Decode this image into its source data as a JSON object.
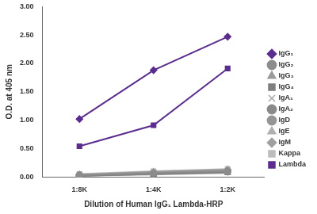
{
  "chart_data": {
    "type": "line",
    "x_label": "Dilution of Human IgG₁ Lambda-HRP",
    "y_label": "O.D. at 405 nm",
    "categories": [
      "1:8K",
      "1:4K",
      "1:2K"
    ],
    "series": [
      {
        "name": "IgG₁",
        "color": "#5b2d8e",
        "marker": "diamond",
        "values": [
          1.02,
          1.88,
          2.47
        ]
      },
      {
        "name": "IgG₂",
        "color": "#8c8c8c",
        "marker": "circle",
        "values": [
          0.03,
          0.07,
          0.1
        ]
      },
      {
        "name": "IgG₃",
        "color": "#9a9a9a",
        "marker": "triangle",
        "values": [
          0.04,
          0.09,
          0.13
        ]
      },
      {
        "name": "IgG₄",
        "color": "#7f7f7f",
        "marker": "square",
        "values": [
          0.02,
          0.05,
          0.08
        ]
      },
      {
        "name": "IgA₁",
        "color": "#a6a6a6",
        "marker": "cross",
        "values": [
          0.03,
          0.06,
          0.1
        ]
      },
      {
        "name": "IgA₂",
        "color": "#8a8a8a",
        "marker": "circle",
        "values": [
          0.02,
          0.05,
          0.09
        ]
      },
      {
        "name": "IgD",
        "color": "#959595",
        "marker": "circle",
        "values": [
          0.03,
          0.06,
          0.11
        ]
      },
      {
        "name": "IgE",
        "color": "#b0b0b0",
        "marker": "triangle",
        "values": [
          0.02,
          0.04,
          0.07
        ]
      },
      {
        "name": "IgM",
        "color": "#a0a0a0",
        "marker": "diamond",
        "values": [
          0.03,
          0.07,
          0.12
        ]
      },
      {
        "name": "Kappa",
        "color": "#bdbdbd",
        "marker": "square",
        "values": [
          0.05,
          0.1,
          0.14
        ]
      },
      {
        "name": "Lambda",
        "color": "#5b2d8e",
        "marker": "square",
        "values": [
          0.54,
          0.91,
          1.91
        ]
      }
    ],
    "ylim": [
      0,
      3
    ],
    "yticks": [
      {
        "value": 0,
        "label": "0.00"
      },
      {
        "value": 0.5,
        "label": "0.50"
      },
      {
        "value": 1,
        "label": "1.00"
      },
      {
        "value": 1.5,
        "label": "1.50"
      },
      {
        "value": 2,
        "label": "2.00"
      },
      {
        "value": 2.5,
        "label": "2.50"
      },
      {
        "value": 3,
        "label": "3.00"
      }
    ],
    "grid": false,
    "legend": "right"
  }
}
